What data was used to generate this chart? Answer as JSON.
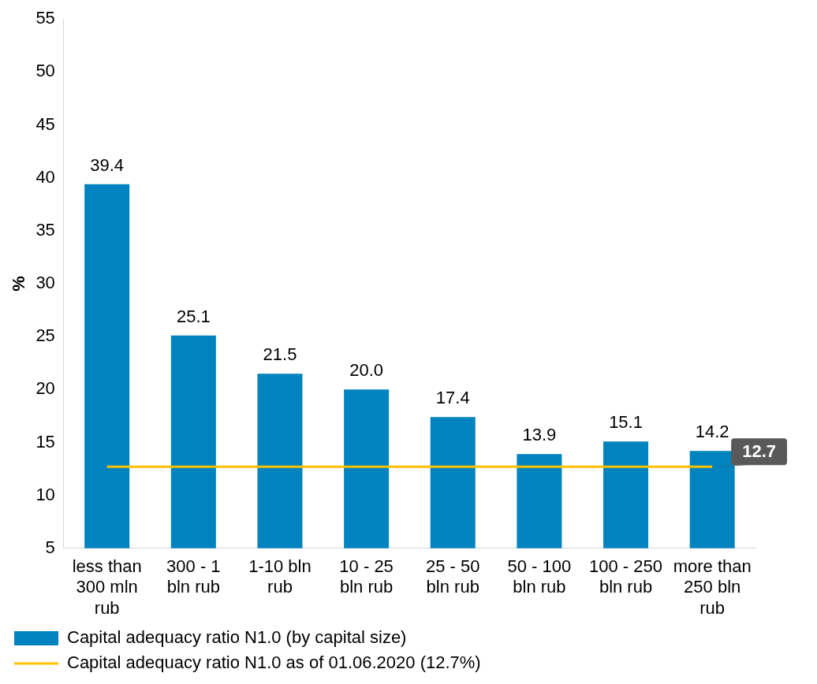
{
  "chart_data": {
    "type": "bar",
    "ylabel": "%",
    "categories": [
      "less than 300 mln rub",
      "300 - 1 bln rub",
      "1-10 bln rub",
      "10 - 25 bln rub",
      "25 - 50 bln rub",
      "50 - 100 bln rub",
      "100 - 250 bln rub",
      "more than 250 bln rub"
    ],
    "series": [
      {
        "name": "Capital adequacy ratio N1.0 (by capital size)",
        "color": "#0083bf",
        "values": [
          39.4,
          25.1,
          21.5,
          20.0,
          17.4,
          13.9,
          15.1,
          14.2
        ],
        "value_labels": [
          "39.4",
          "25.1",
          "21.5",
          "20.0",
          "17.4",
          "13.9",
          "15.1",
          "14.2"
        ]
      },
      {
        "name": "Capital adequacy ratio N1.0 as of 01.06.2020 (12.7%)",
        "type": "line",
        "color": "#ffc000",
        "values": [
          12.7,
          12.7,
          12.7,
          12.7,
          12.7,
          12.7,
          12.7,
          12.7
        ],
        "value_labels": [
          null,
          null,
          null,
          null,
          null,
          null,
          null,
          "12.7"
        ]
      }
    ],
    "ylim": [
      5,
      55
    ],
    "yticks": [
      5,
      10,
      15,
      20,
      25,
      30,
      35,
      40,
      45,
      50,
      55
    ],
    "grid": false,
    "legend": "bottom",
    "marker": "none",
    "line_style": "solid"
  }
}
